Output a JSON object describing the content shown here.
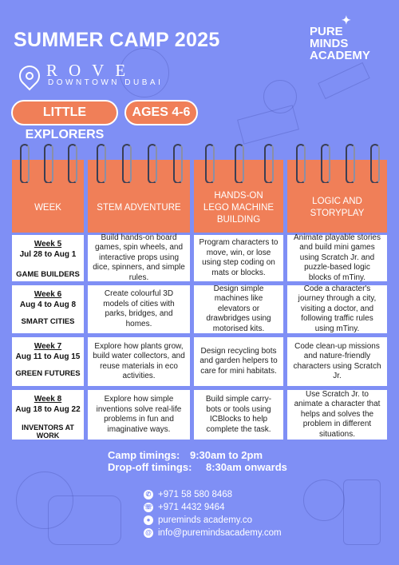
{
  "header": {
    "title": "SUMMER CAMP 2025",
    "logo_line1": "PURE",
    "logo_line2": "MINDS",
    "logo_line3": "ACADEMY",
    "venue_name": "ROVE",
    "venue_sub": "DOWNTOWN DUBAI"
  },
  "pills": {
    "group": "LITTLE EXPLORERS",
    "ages": "AGES 4-6"
  },
  "columns": [
    "WEEK",
    "STEM ADVENTURE",
    "HANDS-ON LEGO MACHINE BUILDING",
    "LOGIC AND STORYPLAY"
  ],
  "weeks": [
    {
      "week": "Week 5",
      "dates": "Jul 28 to Aug 1",
      "theme": "GAME BUILDERS",
      "stem": "Build hands-on board games, spin wheels, and interactive props using dice, spinners, and simple rules.",
      "lego": "Program characters to move, win, or lose using step coding on mats or blocks.",
      "logic": "Animate playable stories and build mini games using Scratch Jr. and puzzle-based logic blocks of mTiny."
    },
    {
      "week": "Week 6",
      "dates": "Aug 4 to Aug 8",
      "theme": "SMART CITIES",
      "stem": "Create colourful 3D models of cities with parks, bridges, and homes.",
      "lego": "Design simple machines like elevators or drawbridges using motorised kits.",
      "logic": "Code a character's journey through a city, visiting a doctor, and following traffic rules using mTiny."
    },
    {
      "week": "Week 7",
      "dates": "Aug 11 to Aug 15",
      "theme": "GREEN FUTURES",
      "stem": "Explore how plants grow, build water collectors, and reuse materials in eco activities.",
      "lego": "Design recycling bots and garden helpers to care for mini habitats.",
      "logic": "Code clean-up missions and nature-friendly characters using Scratch Jr."
    },
    {
      "week": "Week 8",
      "dates": "Aug 18 to Aug 22",
      "theme": "INVENTORS AT WORK",
      "stem": "Explore how simple inventions solve real-life problems in fun and imaginative ways.",
      "lego": "Build simple carry-bots or tools using ICBlocks to help complete the task.",
      "logic": "Use Scratch Jr. to animate a character that helps and solves the problem in different situations."
    }
  ],
  "timings": {
    "camp_label": "Camp timings:",
    "camp_value": "9:30am to 2pm",
    "drop_label": "Drop-off timings:",
    "drop_value": "8:30am onwards"
  },
  "contacts": {
    "whatsapp": "+971 58 580 8468",
    "phone": "+971 4432 9464",
    "website": "pureminds academy.co",
    "email": "info@puremindsacademy.com"
  },
  "colors": {
    "background": "#7f8ff5",
    "accent": "#f07f58",
    "text": "#ffffff"
  }
}
